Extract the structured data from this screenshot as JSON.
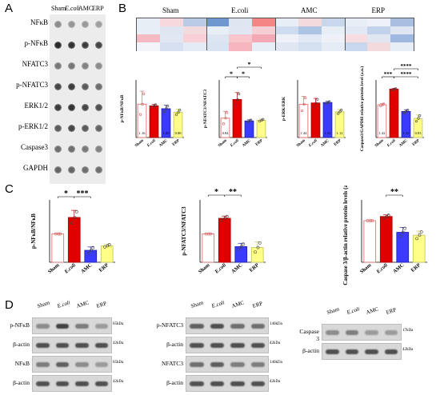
{
  "panels": {
    "a": "A",
    "b": "B",
    "c": "C",
    "d": "D"
  },
  "groups": [
    "Sham",
    "E.coli",
    "AMC",
    "ERP"
  ],
  "group_labels_italic": [
    false,
    true,
    false,
    false
  ],
  "colors": {
    "sham": "#ffffff",
    "ecoli": "#e00000",
    "amc": "#3b3bff",
    "erp": "#ffff88",
    "sham_edge": "#e07070",
    "ecoli_edge": "#b00000",
    "amc_edge": "#2020b0",
    "erp_edge": "#c8c860"
  },
  "dot_blot": {
    "rows": [
      "NFκB",
      "p-NFκB",
      "NFATC3",
      "p-NFATC3",
      "ERK1/2",
      "p-ERK1/2",
      "Caspase3",
      "GAPDH"
    ],
    "columns": [
      "Sham",
      "E.coli",
      "AMC",
      "ERP"
    ],
    "intensity": [
      [
        0.45,
        0.4,
        0.38,
        0.35
      ],
      [
        0.95,
        0.9,
        0.85,
        0.8
      ],
      [
        0.55,
        0.55,
        0.5,
        0.45
      ],
      [
        0.8,
        0.85,
        0.7,
        0.6
      ],
      [
        0.85,
        0.9,
        0.8,
        0.75
      ],
      [
        0.7,
        0.8,
        0.7,
        0.65
      ],
      [
        0.6,
        0.6,
        0.55,
        0.5
      ],
      [
        0.65,
        0.65,
        0.6,
        0.6
      ]
    ]
  },
  "heatmap": {
    "groups": [
      "Sham",
      "E.coli",
      "AMC",
      "ERP"
    ],
    "cells": [
      [
        "#e8eef6",
        "#f7d8dc",
        "#b9cbe6",
        "#6f98d0",
        "#dfe6f2",
        "#f48686",
        "#e8eef6",
        "#f3dadc",
        "#c9d7ec",
        "#e8eef6",
        "#eef2f8",
        "#a8bfe2"
      ],
      [
        "#e8eef6",
        "#dfe6f2",
        "#f3dadc",
        "#e8eef6",
        "#e2e8f3",
        "#f6cfd4",
        "#cfdcef",
        "#aec4e5",
        "#e8eef6",
        "#e3e9f4",
        "#c1d2ea",
        "#dfe6f2"
      ],
      [
        "#f6b9c1",
        "#e2e8f3",
        "#f8d0d6",
        "#dde5f2",
        "#f9c6ce",
        "#f3a9b4",
        "#eef2f8",
        "#e3e9f4",
        "#eef2f8",
        "#f7dde0",
        "#e0e7f3",
        "#9fb9e0"
      ],
      [
        "#f2f4f9",
        "#d6e0f0",
        "#e5ebf5",
        "#dae3f1",
        "#f6b6bf",
        "#e8eef6",
        "#e0e7f3",
        "#d4dfef",
        "#e6ecf5",
        "#c9d7ec",
        "#f3dadc",
        "#e8eef6"
      ]
    ]
  },
  "chart_data": [
    {
      "type": "bar",
      "panel": "B",
      "ylabel": "p-NFκB/NFκB",
      "ylim": [
        0,
        2
      ],
      "categories": [
        "Sham",
        "E.coli",
        "AMC",
        "ERP"
      ],
      "values": [
        1.16,
        1.1,
        1.0,
        0.88
      ],
      "errors": [
        0.45,
        0.05,
        0.12,
        0.1
      ],
      "data_labels": [
        "1.16",
        "",
        "1.00",
        "0.88"
      ],
      "significance": []
    },
    {
      "type": "bar",
      "panel": "B",
      "ylabel": "p-NFATC3/NFATC3",
      "ylim": [
        0,
        2.5
      ],
      "categories": [
        "Sham",
        "E.coli",
        "AMC",
        "ERP"
      ],
      "values": [
        0.84,
        1.65,
        0.72,
        0.75
      ],
      "errors": [
        0.3,
        0.3,
        0.05,
        0.05
      ],
      "data_labels": [
        "0.84",
        "",
        "",
        ""
      ],
      "significance": [
        "*",
        "*",
        "*"
      ]
    },
    {
      "type": "bar",
      "panel": "B",
      "ylabel": "p-ERK/ERK",
      "ylim": [
        0,
        2.5
      ],
      "categories": [
        "Sham",
        "E.coli",
        "AMC",
        "ERP"
      ],
      "values": [
        1.44,
        1.5,
        1.52,
        1.12
      ],
      "errors": [
        0.35,
        0.2,
        0.05,
        0.1
      ],
      "data_labels": [
        "1.44",
        "",
        "1.52",
        "1.12"
      ],
      "significance": []
    },
    {
      "type": "bar",
      "panel": "B",
      "ylabel": "Caspase3/GAPDH relative protein level (a.u.)",
      "ylim": [
        0,
        2.5
      ],
      "categories": [
        "Sham",
        "E.coli",
        "AMC",
        "ERP"
      ],
      "values": [
        1.42,
        2.1,
        1.13,
        0.83
      ],
      "errors": [
        0.05,
        0.03,
        0.08,
        0.15
      ],
      "data_labels": [
        "1.42",
        "",
        "1.13",
        "0.83"
      ],
      "significance": [
        "***",
        "****",
        "****"
      ]
    },
    {
      "type": "bar",
      "panel": "C",
      "ylabel": "p-NFκB/NFκB",
      "ylim": [
        0,
        2.2
      ],
      "categories": [
        "Sham",
        "E.coli",
        "AMC",
        "ERP"
      ],
      "values": [
        1.0,
        1.58,
        0.42,
        0.58
      ],
      "errors": [
        0.0,
        0.25,
        0.12,
        0.05
      ],
      "significance": [
        "*",
        "***"
      ]
    },
    {
      "type": "bar",
      "panel": "C",
      "ylabel": "p-NFATC3/NFATC3",
      "ylim": [
        0,
        2.2
      ],
      "categories": [
        "Sham",
        "E.coli",
        "AMC",
        "ERP"
      ],
      "values": [
        1.0,
        1.55,
        0.55,
        0.52
      ],
      "errors": [
        0.0,
        0.08,
        0.12,
        0.2
      ],
      "significance": [
        "*",
        "**"
      ]
    },
    {
      "type": "bar",
      "panel": "C",
      "ylabel": "Caspase 3/β-actin relative protein levels (a.u.)",
      "ylim": [
        0,
        1.5
      ],
      "categories": [
        "Sham",
        "E.coli",
        "AMC",
        "ERP"
      ],
      "values": [
        1.0,
        1.1,
        0.72,
        0.65
      ],
      "errors": [
        0.0,
        0.04,
        0.12,
        0.1
      ],
      "significance": [
        "**"
      ]
    }
  ],
  "western": {
    "left": {
      "rows": [
        "p-NFκB",
        "β-actin",
        "NFκB",
        "β-actin"
      ],
      "kda": [
        "65kDa",
        "42kDa",
        "65kDa",
        "42kDa"
      ]
    },
    "mid": {
      "rows": [
        "p-NFATC3",
        "β-actin",
        "NFATC3",
        "β-actin"
      ],
      "kda": [
        "140kDa",
        "42kDa",
        "140kDa",
        "42kDa"
      ]
    },
    "right": {
      "rows": [
        "Caspase 3",
        "β-actin"
      ],
      "kda": [
        "17kDa",
        "42kDa"
      ]
    }
  }
}
